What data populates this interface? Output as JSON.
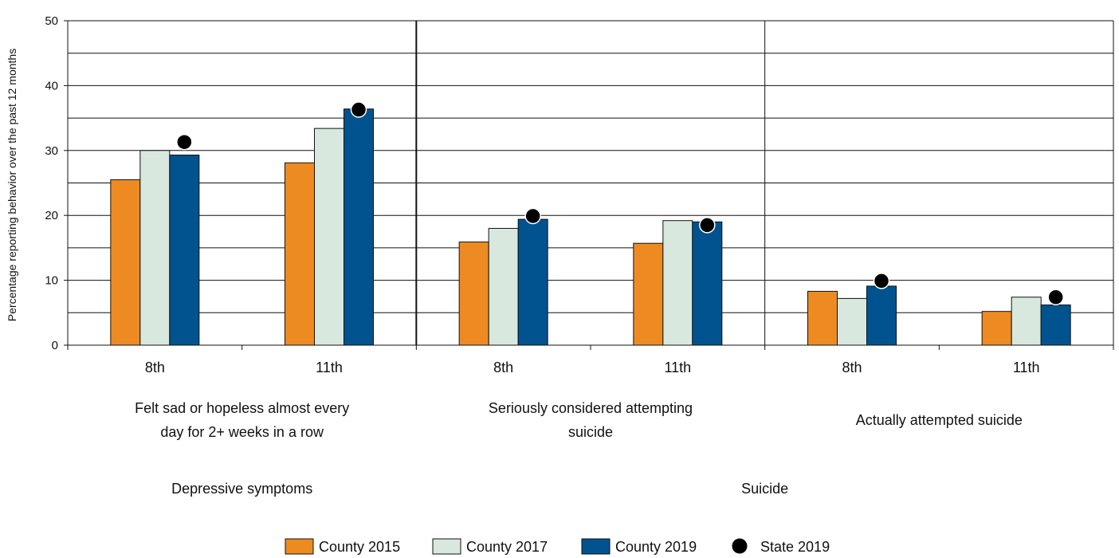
{
  "chart_data": {
    "type": "bar",
    "ylabel": "Percentage reporting behavior over the past 12 months",
    "ylim": [
      0,
      50
    ],
    "yticks": [
      "0",
      "10",
      "20",
      "30",
      "40",
      "50"
    ],
    "grid": true,
    "legend_position": "bottom",
    "sections": [
      "Depressive symptoms",
      "Suicide"
    ],
    "groups": [
      {
        "label": "Felt sad or hopeless almost every day for 2+ weeks in a row",
        "lines": [
          "Felt sad or hopeless almost every",
          "day for 2+ weeks in a row"
        ],
        "section": "Depressive symptoms"
      },
      {
        "label": "Seriously considered attempting suicide",
        "lines": [
          "Seriously considered attempting",
          "suicide"
        ],
        "section": "Suicide"
      },
      {
        "label": "Actually attempted suicide",
        "lines": [
          "Actually attempted suicide"
        ],
        "section": "Suicide"
      }
    ],
    "categories": [
      "8th",
      "11th",
      "8th",
      "11th",
      "8th",
      "11th"
    ],
    "series": [
      {
        "name": "County 2015",
        "kind": "bar",
        "color": "#ED8B22",
        "values": [
          25.5,
          28.1,
          15.9,
          15.7,
          8.3,
          5.2
        ]
      },
      {
        "name": "County 2017",
        "kind": "bar",
        "color": "#D8E8DF",
        "values": [
          30.0,
          33.4,
          18.0,
          19.2,
          7.2,
          7.4
        ]
      },
      {
        "name": "County 2019",
        "kind": "bar",
        "color": "#00538F",
        "values": [
          29.3,
          36.4,
          19.4,
          19.0,
          9.1,
          6.2
        ]
      },
      {
        "name": "State 2019",
        "kind": "point",
        "color": "#000000",
        "values": [
          31.3,
          36.3,
          19.9,
          18.5,
          9.9,
          7.4
        ]
      }
    ]
  }
}
